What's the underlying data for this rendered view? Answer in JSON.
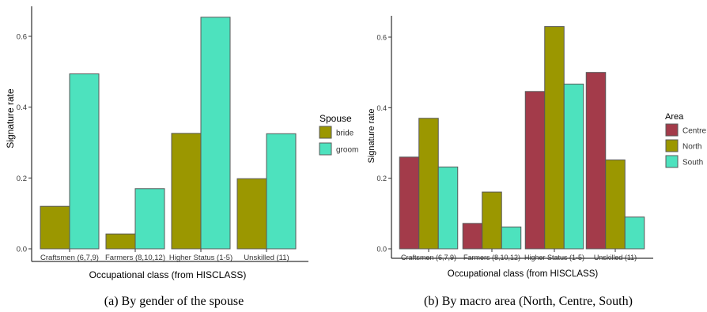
{
  "chart_data": [
    {
      "type": "bar",
      "caption": "(a)   By gender of the spouse",
      "categories": [
        "Craftsmen (6,7,9)",
        "Farmers (8,10,12)",
        "Higher Status (1-5)",
        "Unskilled (11)"
      ],
      "series": [
        {
          "name": "bride",
          "color": "#9b9700",
          "values": [
            0.12,
            0.042,
            0.326,
            0.198
          ]
        },
        {
          "name": "groom",
          "color": "#4de2be",
          "values": [
            0.494,
            0.17,
            0.654,
            0.325
          ]
        }
      ],
      "xlabel": "Occupational class (from HISCLASS)",
      "ylabel": "Signature rate",
      "ylim": [
        0,
        0.7
      ],
      "yticks": [
        0.0,
        0.2,
        0.4,
        0.6
      ],
      "ytick_labels": [
        "0.0",
        "0.2",
        "0.4",
        "0.6"
      ],
      "legend_title": "Spouse",
      "legend_position": "right",
      "grid": false
    },
    {
      "type": "bar",
      "caption": "(b) By macro area (North, Centre, South)",
      "categories": [
        "Craftsmen (6,7,9)",
        "Farmers (8,10,12)",
        "Higher Status (1-5)",
        "Unskilled (11)"
      ],
      "series": [
        {
          "name": "Centre",
          "color": "#a33b4a",
          "values": [
            0.26,
            0.072,
            0.446,
            0.5
          ]
        },
        {
          "name": "North",
          "color": "#9b9700",
          "values": [
            0.37,
            0.161,
            0.63,
            0.252
          ]
        },
        {
          "name": "South",
          "color": "#4de2be",
          "values": [
            0.232,
            0.062,
            0.467,
            0.09
          ]
        }
      ],
      "xlabel": "Occupational class (from HISCLASS)",
      "ylabel": "Signature rate",
      "ylim": [
        0,
        0.7
      ],
      "yticks": [
        0.0,
        0.2,
        0.4,
        0.6
      ],
      "ytick_labels": [
        "0.0",
        "0.2",
        "0.4",
        "0.6"
      ],
      "legend_title": "Area",
      "legend_position": "right",
      "grid": false
    }
  ]
}
